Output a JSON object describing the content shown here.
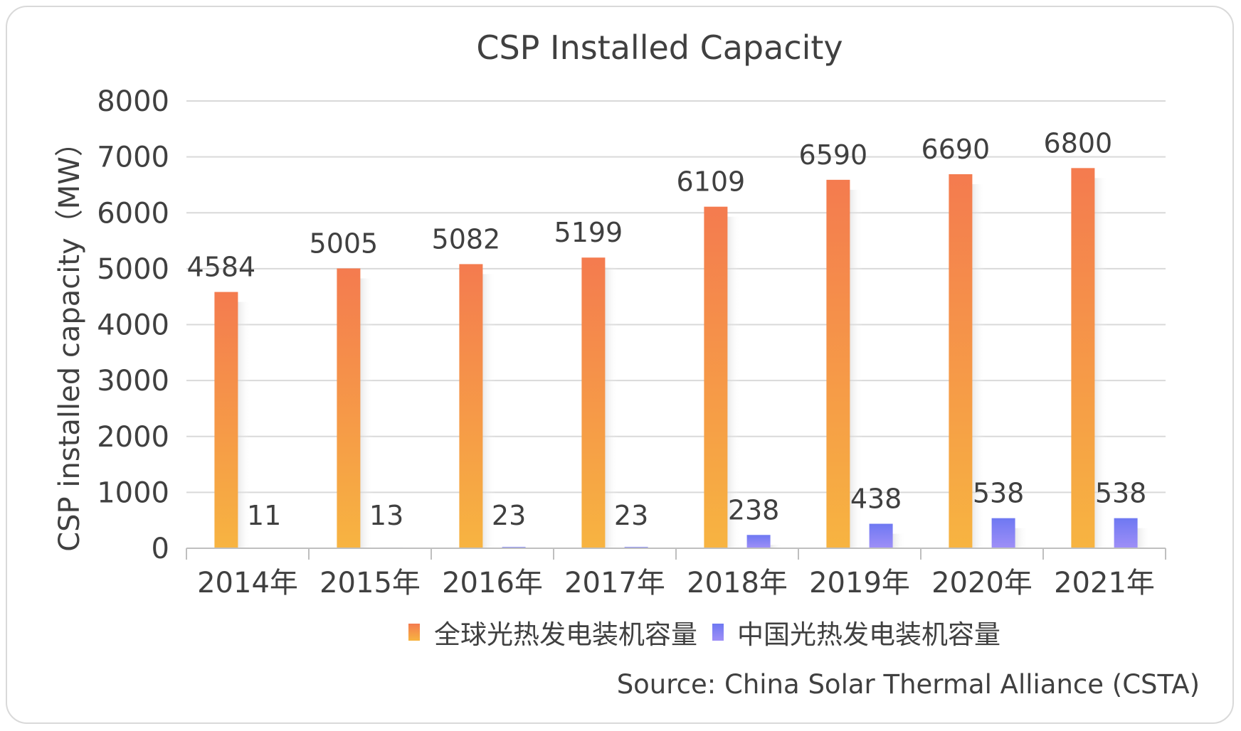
{
  "chart_data": {
    "type": "bar",
    "title": "CSP Installed Capacity",
    "xlabel": "",
    "ylabel": "CSP installed capacity（MW）",
    "categories": [
      "2014年",
      "2015年",
      "2016年",
      "2017年",
      "2018年",
      "2019年",
      "2020年",
      "2021年"
    ],
    "series": [
      {
        "name": "全球光热发电装机容量",
        "values": [
          4584,
          5005,
          5082,
          5199,
          6109,
          6590,
          6690,
          6800
        ],
        "color_top": "#f47b4f",
        "color_bottom": "#f7b441"
      },
      {
        "name": "中国光热发电装机容量",
        "values": [
          11,
          13,
          23,
          23,
          238,
          438,
          538,
          538
        ],
        "color_top": "#6e78f2",
        "color_bottom": "#9f8ff7"
      }
    ],
    "ylim": [
      0,
      8000
    ],
    "yticks": [
      0,
      1000,
      2000,
      3000,
      4000,
      5000,
      6000,
      7000,
      8000
    ],
    "grid": true,
    "legend_position": "bottom",
    "source": "Source: China Solar Thermal Alliance (CSTA)"
  }
}
